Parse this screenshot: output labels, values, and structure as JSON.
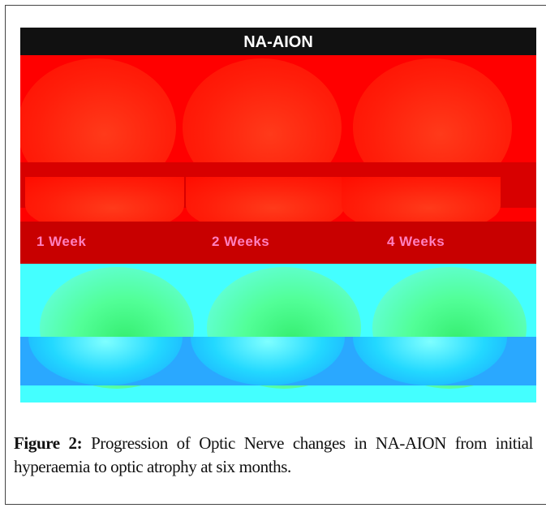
{
  "figure": {
    "title": "NA-AION",
    "timepoints": [
      "1 Week",
      "2 Weeks",
      "4 Weeks"
    ],
    "colors": {
      "title_bar": "#111111",
      "top_band": "#ff0000",
      "bottom_band": "#44ffff",
      "label_color": "#ff7fbf"
    }
  },
  "caption": {
    "label": "Figure 2:",
    "text": " Progression of Optic Nerve changes in NA-AION from initial hyperaemia to optic atrophy at six months."
  }
}
